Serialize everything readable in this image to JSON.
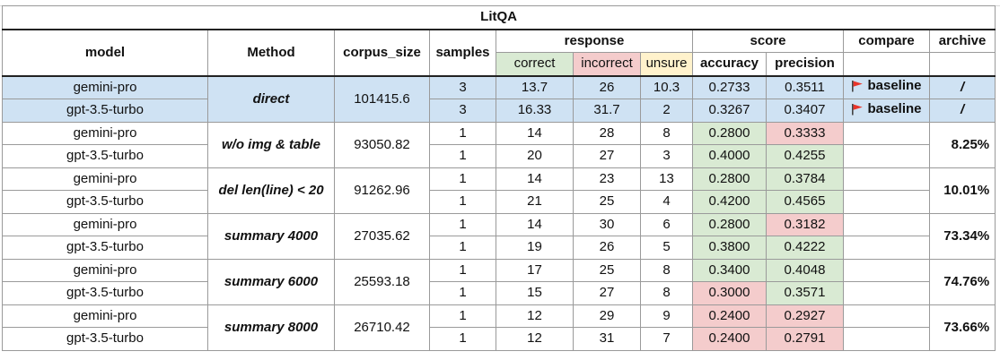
{
  "title": "LitQA",
  "headers": {
    "model": "model",
    "method": "Method",
    "corpus_size": "corpus_size",
    "samples": "samples",
    "response": "response",
    "score": "score",
    "compare": "compare",
    "archive": "archive",
    "correct": "correct",
    "incorrect": "incorrect",
    "unsure": "unsure",
    "accuracy": "accuracy",
    "precision": "precision"
  },
  "colors": {
    "highlight_blue": "#cfe2f3",
    "good_green": "#d9ead3",
    "bad_red": "#f4cccc",
    "unsure_yellow": "#fff2cc",
    "flag_red": "#e8342a"
  },
  "groups": [
    {
      "method": "direct",
      "corpus_size": "101415.6",
      "archive": "/",
      "rows": [
        {
          "model": "gemini-pro",
          "samples": "3",
          "correct": "13.7",
          "incorrect": "26",
          "unsure": "10.3",
          "accuracy": "0.2733",
          "precision": "0.3511",
          "compare": "baseline"
        },
        {
          "model": "gpt-3.5-turbo",
          "samples": "3",
          "correct": "16.33",
          "incorrect": "31.7",
          "unsure": "2",
          "accuracy": "0.3267",
          "precision": "0.3407",
          "compare": "baseline"
        }
      ]
    },
    {
      "method": "w/o img & table",
      "corpus_size": "93050.82",
      "archive": "8.25%",
      "rows": [
        {
          "model": "gemini-pro",
          "samples": "1",
          "correct": "14",
          "incorrect": "28",
          "unsure": "8",
          "accuracy": "0.2800",
          "precision": "0.3333"
        },
        {
          "model": "gpt-3.5-turbo",
          "samples": "1",
          "correct": "20",
          "incorrect": "27",
          "unsure": "3",
          "accuracy": "0.4000",
          "precision": "0.4255"
        }
      ]
    },
    {
      "method": "del len(line) < 20",
      "corpus_size": "91262.96",
      "archive": "10.01%",
      "rows": [
        {
          "model": "gemini-pro",
          "samples": "1",
          "correct": "14",
          "incorrect": "23",
          "unsure": "13",
          "accuracy": "0.2800",
          "precision": "0.3784"
        },
        {
          "model": "gpt-3.5-turbo",
          "samples": "1",
          "correct": "21",
          "incorrect": "25",
          "unsure": "4",
          "accuracy": "0.4200",
          "precision": "0.4565"
        }
      ]
    },
    {
      "method": "summary 4000",
      "corpus_size": "27035.62",
      "archive": "73.34%",
      "rows": [
        {
          "model": "gemini-pro",
          "samples": "1",
          "correct": "14",
          "incorrect": "30",
          "unsure": "6",
          "accuracy": "0.2800",
          "precision": "0.3182"
        },
        {
          "model": "gpt-3.5-turbo",
          "samples": "1",
          "correct": "19",
          "incorrect": "26",
          "unsure": "5",
          "accuracy": "0.3800",
          "precision": "0.4222"
        }
      ]
    },
    {
      "method": "summary 6000",
      "corpus_size": "25593.18",
      "archive": "74.76%",
      "rows": [
        {
          "model": "gemini-pro",
          "samples": "1",
          "correct": "17",
          "incorrect": "25",
          "unsure": "8",
          "accuracy": "0.3400",
          "precision": "0.4048"
        },
        {
          "model": "gpt-3.5-turbo",
          "samples": "1",
          "correct": "15",
          "incorrect": "27",
          "unsure": "8",
          "accuracy": "0.3000",
          "precision": "0.3571"
        }
      ]
    },
    {
      "method": "summary 8000",
      "corpus_size": "26710.42",
      "archive": "73.66%",
      "rows": [
        {
          "model": "gemini-pro",
          "samples": "1",
          "correct": "12",
          "incorrect": "29",
          "unsure": "9",
          "accuracy": "0.2400",
          "precision": "0.2927"
        },
        {
          "model": "gpt-3.5-turbo",
          "samples": "1",
          "correct": "12",
          "incorrect": "31",
          "unsure": "7",
          "accuracy": "0.2400",
          "precision": "0.2791"
        }
      ]
    }
  ]
}
